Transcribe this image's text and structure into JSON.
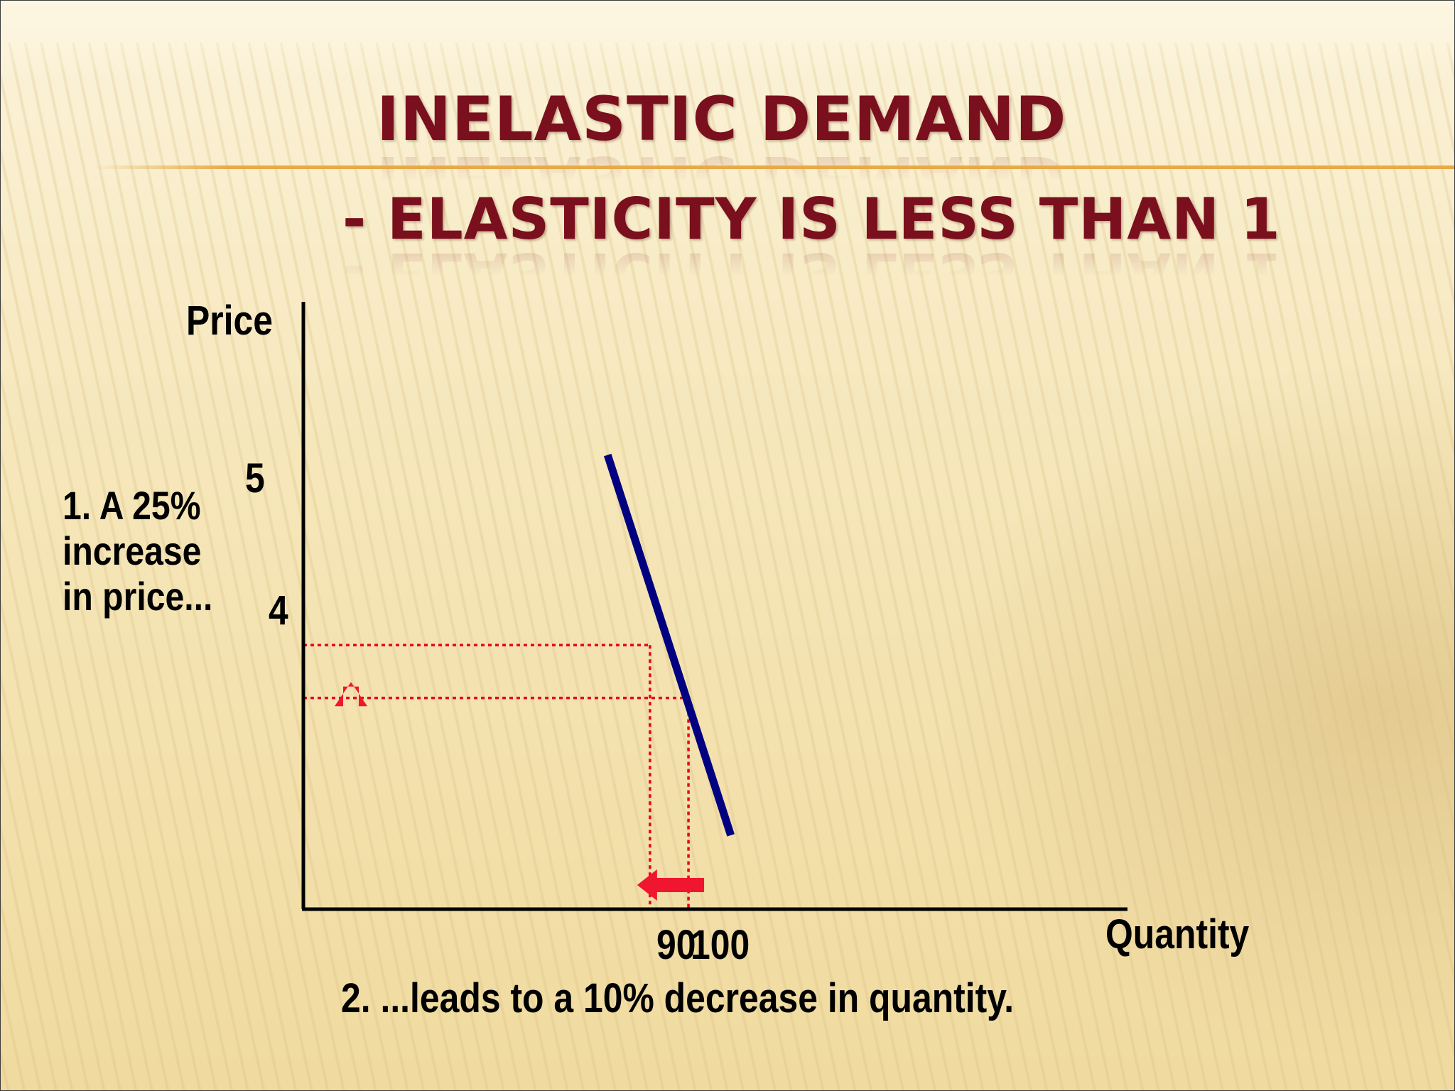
{
  "slide": {
    "title": "INELASTIC DEMAND",
    "subtitle": "- ELASTICITY IS LESS THAN 1",
    "colors": {
      "title": "#7a0f1e",
      "accent_rule": "#e8aa46",
      "demand_line": "#000080",
      "guide_lines": "#e8001c",
      "arrows": "#f0162f"
    }
  },
  "chart_data": {
    "type": "line",
    "title": "",
    "xlabel": "Quantity",
    "ylabel": "Price",
    "x_tick_labels": [
      "90",
      "100"
    ],
    "y_tick_labels": [
      "5",
      "4"
    ],
    "xlim": [
      0,
      214
    ],
    "ylim": [
      0,
      11.5
    ],
    "grid": false,
    "series": [
      {
        "values": [
          {
            "x": 79,
            "y": 8.6
          },
          {
            "x": 111,
            "y": 1.4
          }
        ]
      }
    ],
    "points": [
      {
        "x": 90,
        "y": 5
      },
      {
        "x": 100,
        "y": 4
      }
    ],
    "annotations": [
      {
        "text": "1. A 25%\nincrease\nin price...",
        "arrow": "up"
      },
      {
        "text": "2. ...leads to a 10% decrease in quantity.",
        "arrow": "left"
      }
    ]
  }
}
